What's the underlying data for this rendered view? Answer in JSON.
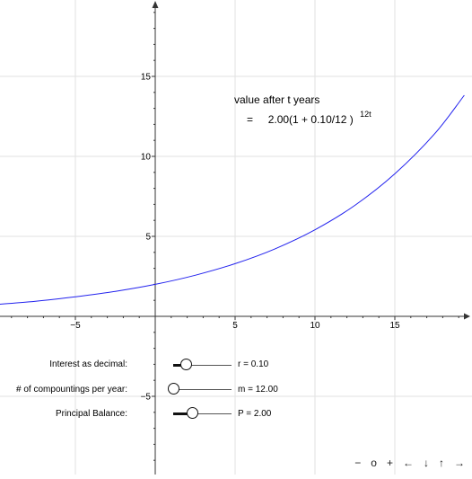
{
  "formula": {
    "line1": "value after t years",
    "line2_prefix": "=",
    "line2_expr": "2.00(1 + 0.10/12 )",
    "line2_exponent": "12t"
  },
  "sliders": [
    {
      "label": "Interest as decimal:",
      "value_text": "r = 0.10",
      "fraction": 0.23
    },
    {
      "label": "# of compountings per year:",
      "value_text": "m = 12.00",
      "fraction": 0.0
    },
    {
      "label": "Principal Balance:",
      "value_text": "P = 2.00",
      "fraction": 0.33
    }
  ],
  "nav": {
    "zoom_out": "−",
    "reset": "o",
    "zoom_in": "+",
    "left": "←",
    "down": "↓",
    "up": "↑",
    "right": "→"
  },
  "chart_data": {
    "type": "line",
    "title": "",
    "xlabel": "",
    "ylabel": "",
    "xlim": [
      -9.8,
      19.8
    ],
    "ylim": [
      -9.8,
      19.8
    ],
    "grid": true,
    "x_ticks": [
      -5,
      5,
      10,
      15
    ],
    "y_ticks": [
      -5,
      5,
      10,
      15
    ],
    "x_tick_labels": [
      "−5",
      "5",
      "10",
      "15"
    ],
    "y_tick_labels": [
      "−5",
      "5",
      "10",
      "15"
    ],
    "series": [
      {
        "function": "2.00(1 + 0.10/12)^(12t)",
        "color": "#2222ee",
        "x": [
          -9.8,
          -7.5,
          -5,
          -2.5,
          0,
          2.5,
          5,
          7.5,
          10,
          12.5,
          15,
          17.5,
          19.35
        ],
        "y": [
          0.75,
          0.94,
          1.22,
          1.56,
          2.0,
          2.57,
          3.29,
          4.22,
          5.41,
          6.94,
          8.91,
          11.42,
          13.82
        ]
      }
    ]
  }
}
